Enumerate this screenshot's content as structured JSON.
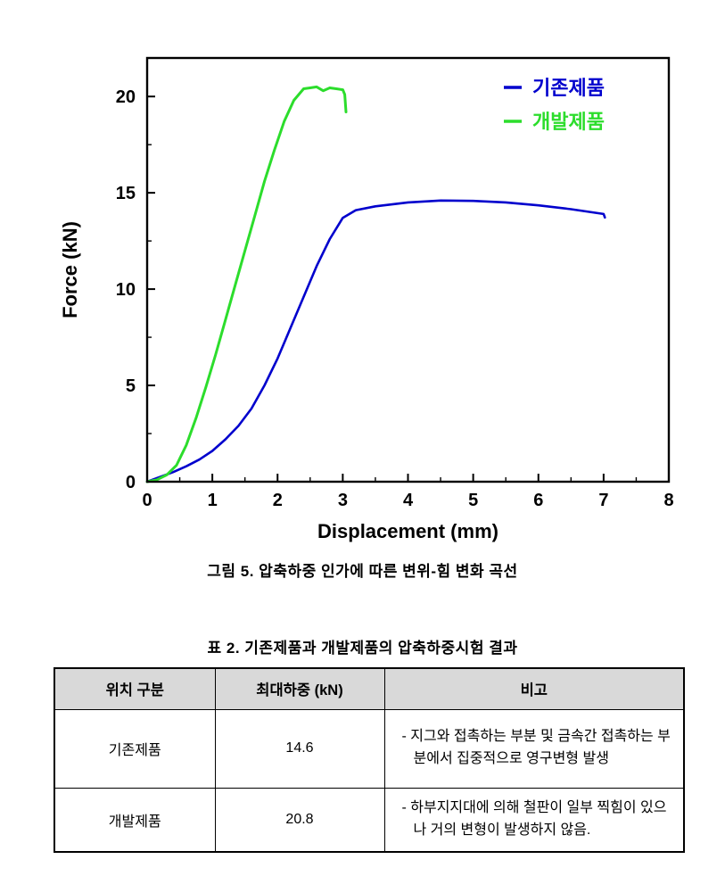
{
  "figure": {
    "caption": "그림 5. 압축하중 인가에 따른 변위-힘 변화 곡선"
  },
  "chart_data": {
    "type": "line",
    "title": "",
    "xlabel": "Displacement (mm)",
    "ylabel": "Force (kN)",
    "xlim": [
      0,
      8
    ],
    "ylim": [
      0,
      22
    ],
    "xticks": [
      0,
      1,
      2,
      3,
      4,
      5,
      6,
      7,
      8
    ],
    "yticks": [
      0,
      5,
      10,
      15,
      20
    ],
    "grid": false,
    "legend_position": "top-right-inside",
    "series": [
      {
        "name": "기존제품",
        "color": "#0000cd",
        "points": [
          [
            0,
            0
          ],
          [
            0.2,
            0.25
          ],
          [
            0.4,
            0.5
          ],
          [
            0.6,
            0.8
          ],
          [
            0.8,
            1.15
          ],
          [
            1.0,
            1.6
          ],
          [
            1.2,
            2.2
          ],
          [
            1.4,
            2.9
          ],
          [
            1.6,
            3.8
          ],
          [
            1.8,
            5.0
          ],
          [
            2.0,
            6.4
          ],
          [
            2.2,
            8.0
          ],
          [
            2.4,
            9.6
          ],
          [
            2.6,
            11.2
          ],
          [
            2.8,
            12.6
          ],
          [
            3.0,
            13.7
          ],
          [
            3.2,
            14.1
          ],
          [
            3.5,
            14.3
          ],
          [
            4.0,
            14.5
          ],
          [
            4.5,
            14.6
          ],
          [
            5.0,
            14.58
          ],
          [
            5.5,
            14.5
          ],
          [
            6.0,
            14.35
          ],
          [
            6.5,
            14.15
          ],
          [
            7.0,
            13.9
          ],
          [
            7.02,
            13.72
          ]
        ]
      },
      {
        "name": "개발제품",
        "color": "#2cdd2c",
        "points": [
          [
            0,
            0
          ],
          [
            0.15,
            0.1
          ],
          [
            0.3,
            0.35
          ],
          [
            0.45,
            0.85
          ],
          [
            0.6,
            1.9
          ],
          [
            0.75,
            3.3
          ],
          [
            0.9,
            4.9
          ],
          [
            1.05,
            6.6
          ],
          [
            1.2,
            8.4
          ],
          [
            1.35,
            10.2
          ],
          [
            1.5,
            12.0
          ],
          [
            1.65,
            13.8
          ],
          [
            1.8,
            15.6
          ],
          [
            1.95,
            17.2
          ],
          [
            2.1,
            18.7
          ],
          [
            2.25,
            19.8
          ],
          [
            2.4,
            20.4
          ],
          [
            2.5,
            20.45
          ],
          [
            2.6,
            20.5
          ],
          [
            2.7,
            20.3
          ],
          [
            2.8,
            20.45
          ],
          [
            2.9,
            20.4
          ],
          [
            3.0,
            20.35
          ],
          [
            3.03,
            20.1
          ],
          [
            3.05,
            19.2
          ]
        ]
      }
    ]
  },
  "table": {
    "caption": "표 2. 기존제품과 개발제품의 압축하중시험 결과",
    "headers": [
      "위치 구분",
      "최대하중 (kN)",
      "비고"
    ],
    "rows": [
      {
        "name": "기존제품",
        "max_load": "14.6",
        "remark": "- 지그와 접촉하는 부분 및 금속간 접촉하는 부분에서 집중적으로 영구변형 발생"
      },
      {
        "name": "개발제품",
        "max_load": "20.8",
        "remark": "- 하부지지대에 의해 철판이 일부 찍힘이 있으나 거의 변형이 발생하지 않음."
      }
    ]
  }
}
